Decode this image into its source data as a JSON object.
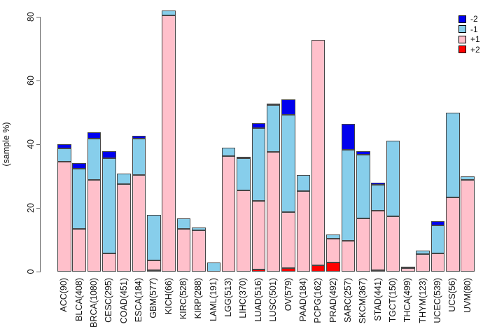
{
  "figure": {
    "background": "#FFFFFF",
    "bar_border_color": "#464646",
    "axis_color": "#666666"
  },
  "chart_data": {
    "type": "bar",
    "stacked": true,
    "title": "",
    "xlabel": "",
    "ylabel": "(sample %)",
    "ylim": [
      0,
      80
    ],
    "yticks": [
      0,
      20,
      40,
      60,
      80
    ],
    "grid": false,
    "legend_position": "top-right",
    "stack_order_bottom_to_top": [
      "+2",
      "+1",
      "-1",
      "-2"
    ],
    "legend": [
      {
        "label": "-2",
        "color": "#0000EE"
      },
      {
        "label": "-1",
        "color": "#87CEEB"
      },
      {
        "label": "+1",
        "color": "#FFC0CB"
      },
      {
        "label": "+2",
        "color": "#FF0000"
      }
    ],
    "categories": [
      "ACC(90)",
      "BLCA(408)",
      "BRCA(1080)",
      "CESC(295)",
      "COAD(451)",
      "ESCA(184)",
      "GBM(577)",
      "KICH(66)",
      "KIRC(528)",
      "KIRP(288)",
      "LAML(191)",
      "LGG(513)",
      "LIHC(370)",
      "LUAD(516)",
      "LUSC(501)",
      "OV(579)",
      "PAAD(184)",
      "PCPG(162)",
      "PRAD(492)",
      "SARC(257)",
      "SKCM(367)",
      "STAD(441)",
      "TGCT(150)",
      "THCA(499)",
      "THYM(123)",
      "UCEC(539)",
      "UCS(56)",
      "UVM(80)"
    ],
    "series": [
      {
        "name": "+2",
        "color": "#FF0000",
        "values": [
          0,
          0,
          0,
          0,
          0,
          0,
          0.5,
          0,
          0,
          0,
          0,
          0,
          0,
          0.6,
          0,
          1.1,
          0,
          2.0,
          2.9,
          0,
          0,
          0.4,
          0,
          0,
          0,
          0,
          0,
          0
        ]
      },
      {
        "name": "+1",
        "color": "#FFC0CB",
        "values": [
          34.4,
          13.4,
          28.8,
          5.8,
          27.5,
          30.4,
          3.0,
          80.4,
          13.4,
          13.0,
          0,
          36.3,
          25.5,
          21.7,
          37.6,
          17.6,
          25.3,
          70.7,
          7.5,
          9.7,
          16.8,
          18.8,
          17.4,
          1.0,
          5.6,
          5.8,
          23.2,
          28.8
        ]
      },
      {
        "name": "-1",
        "color": "#87CEEB",
        "values": [
          4.3,
          18.8,
          13.0,
          29.9,
          3.3,
          11.4,
          14.2,
          1.5,
          3.4,
          0.9,
          2.9,
          2.7,
          10.0,
          22.8,
          14.6,
          30.5,
          5.1,
          0,
          1.2,
          28.5,
          20.0,
          8.0,
          23.8,
          0.6,
          1.1,
          8.8,
          26.8,
          1.2
        ]
      },
      {
        "name": "-2",
        "color": "#0000EE",
        "values": [
          1.4,
          1.9,
          1.9,
          2.0,
          0,
          0.8,
          0,
          0,
          0,
          0,
          0,
          0,
          0.6,
          1.6,
          0.5,
          4.9,
          0,
          0,
          0,
          8.1,
          0.9,
          0.8,
          0,
          0,
          0,
          1.3,
          0,
          0
        ]
      }
    ]
  }
}
